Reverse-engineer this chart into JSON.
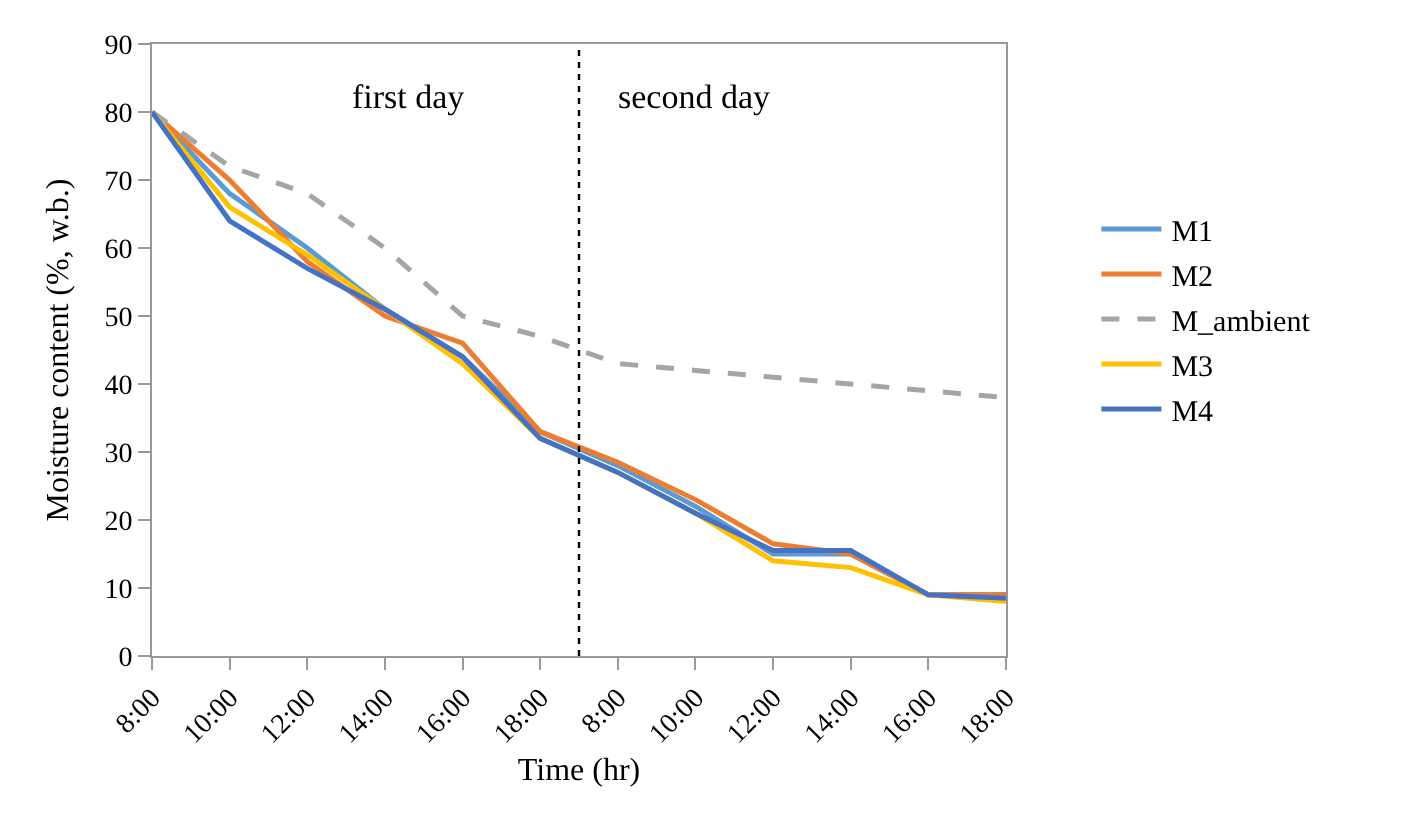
{
  "chart_data": {
    "type": "line",
    "xlabel": "Time (hr)",
    "ylabel": "Moisture content (%, w.b.)",
    "categories": [
      "8:00",
      "10:00",
      "12:00",
      "14:00",
      "16:00",
      "18:00",
      "8:00",
      "10:00",
      "12:00",
      "14:00",
      "16:00",
      "18:00"
    ],
    "ylim": [
      0,
      90
    ],
    "yticks": [
      0,
      10,
      20,
      30,
      40,
      50,
      60,
      70,
      80,
      90
    ],
    "grid": false,
    "legend": "right",
    "marker": "none",
    "series": [
      {
        "name": "M1",
        "color": "#5b9bd5",
        "values": [
          80,
          68,
          60,
          51,
          44,
          33,
          28,
          22,
          15,
          15,
          9,
          9
        ]
      },
      {
        "name": "M2",
        "color": "#ed7d31",
        "values": [
          80,
          70,
          58,
          50,
          46,
          33,
          28.5,
          23,
          16.5,
          15,
          9,
          9
        ]
      },
      {
        "name": "M_ambient",
        "color": "#a5a5a5",
        "line_style": "dashed",
        "values": [
          80,
          72,
          68,
          60,
          50,
          47,
          43,
          42,
          41,
          40,
          39,
          38
        ]
      },
      {
        "name": "M3",
        "color": "#ffc000",
        "values": [
          80,
          66,
          59,
          51,
          43,
          32,
          27,
          21,
          14,
          13,
          9,
          8
        ]
      },
      {
        "name": "M4",
        "color": "#4472c4",
        "values": [
          80,
          64,
          57,
          51,
          44,
          32,
          27,
          21,
          15.5,
          15.5,
          9,
          8.5
        ]
      }
    ],
    "annotations": [
      "first day",
      "second day"
    ]
  }
}
